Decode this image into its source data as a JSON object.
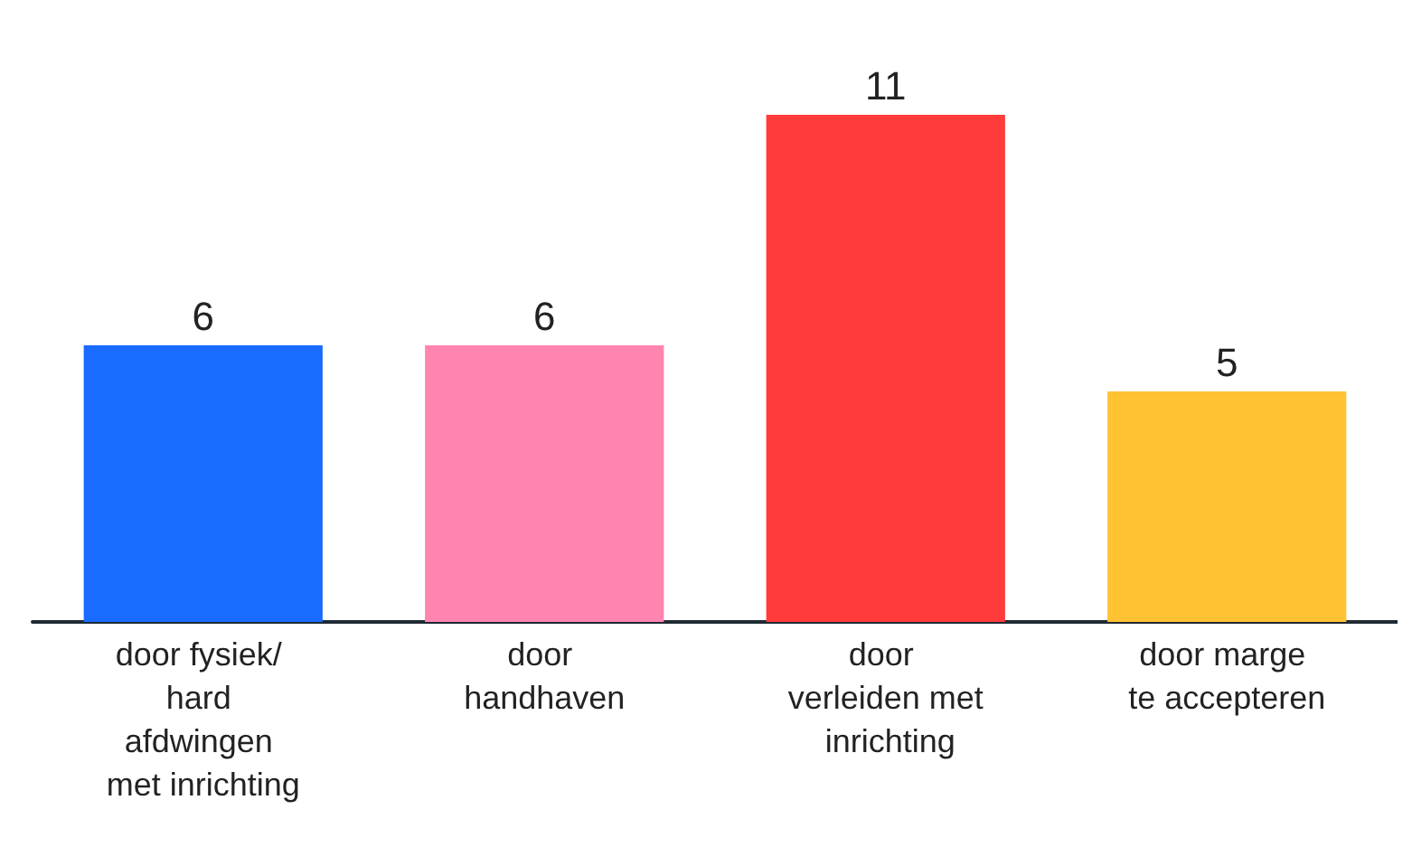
{
  "chart_data": {
    "type": "bar",
    "categories": [
      "door fysiek/ hard afdwingen met inrichting",
      "door handhaven",
      "door verleiden met inrichting",
      "door marge te accepteren"
    ],
    "values": [
      6,
      6,
      11,
      5
    ],
    "colors": [
      "#1a6bff",
      "#ff85b0",
      "#ff3b3b",
      "#ffc233"
    ],
    "data_labels": true,
    "grid": false
  }
}
